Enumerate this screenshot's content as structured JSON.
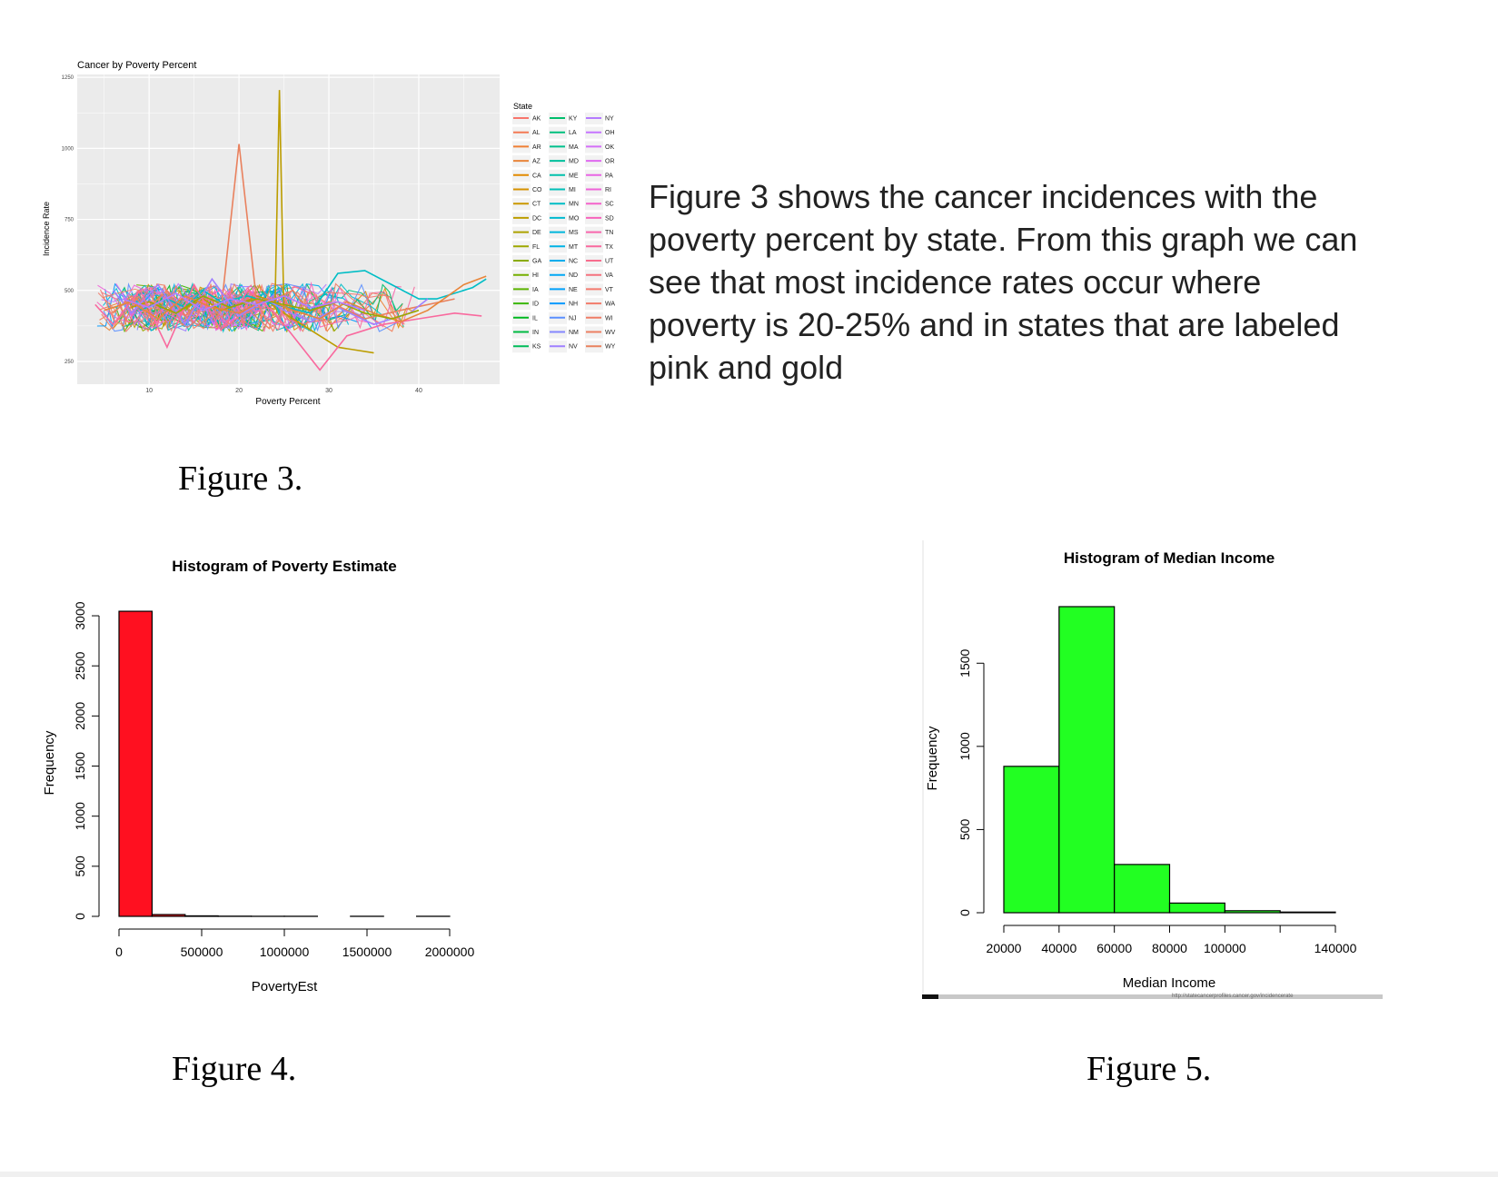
{
  "captions": {
    "fig3": "Figure 3.",
    "fig4": "Figure 4.",
    "fig5": "Figure 5."
  },
  "description": "Figure 3 shows the cancer incidences with the poverty percent by state. From this graph we can see that most incidence rates occur where poverty is 20-25% and in states that are labeled pink and gold",
  "chart_data": [
    {
      "id": "fig3",
      "type": "line",
      "title": "Cancer by Poverty Percent",
      "xlabel": "Poverty Percent",
      "ylabel": "Incidence Rate",
      "xlim": [
        2,
        49
      ],
      "ylim": [
        170,
        1260
      ],
      "xticks": [
        10,
        20,
        30,
        40
      ],
      "yticks": [
        250,
        500,
        750,
        1000,
        1250
      ],
      "grid": true,
      "legend": {
        "title": "State",
        "placement": "right",
        "entries": [
          "AK",
          "AL",
          "AR",
          "AZ",
          "CA",
          "CO",
          "CT",
          "DC",
          "DE",
          "FL",
          "GA",
          "HI",
          "IA",
          "ID",
          "IL",
          "IN",
          "KS",
          "KY",
          "LA",
          "MA",
          "MD",
          "ME",
          "MI",
          "MN",
          "MO",
          "MS",
          "MT",
          "NC",
          "ND",
          "NE",
          "NH",
          "NJ",
          "NM",
          "NV",
          "NY",
          "OH",
          "OK",
          "OR",
          "PA",
          "RI",
          "SC",
          "SD",
          "TN",
          "TX",
          "UT",
          "VA",
          "VT",
          "WA",
          "WI",
          "WV",
          "WY"
        ],
        "colors": [
          "#F8766D",
          "#F47A54",
          "#EF7F34",
          "#E8853A",
          "#E18A00",
          "#D69100",
          "#C99800",
          "#BC9D00",
          "#ADA200",
          "#9DA700",
          "#8AAB00",
          "#74AE00",
          "#5BB300",
          "#39B600",
          "#00B81F",
          "#00BA42",
          "#00BC59",
          "#00BE6C",
          "#00BF7D",
          "#00C08D",
          "#00C09C",
          "#00C0AB",
          "#00BFB8",
          "#00BDC5",
          "#00BAD0",
          "#00B6DB",
          "#00B2E5",
          "#00ADED",
          "#00A7F4",
          "#00A0FA",
          "#0099FE",
          "#5B90FF",
          "#8487FF",
          "#9F80FF",
          "#B57BFF",
          "#C675FF",
          "#D46FF8",
          "#DF69EF",
          "#E865E4",
          "#EF63D8",
          "#F463CB",
          "#F764BC",
          "#F966AD",
          "#F9699E",
          "#F76D8E",
          "#F4717E",
          "#F47A6E",
          "#F27B6A",
          "#EF7D66",
          "#EC7F62",
          "#E9815E"
        ]
      },
      "series": [
        {
          "name": "WY",
          "x": [
            6,
            8,
            10,
            12,
            14,
            16,
            18,
            20,
            22,
            24,
            26,
            28,
            30,
            34,
            38,
            44
          ],
          "y": [
            420,
            480,
            440,
            500,
            410,
            470,
            430,
            1015,
            450,
            470,
            500,
            420,
            460,
            400,
            430,
            470
          ]
        },
        {
          "name": "DC",
          "x": [
            8,
            10,
            13,
            16,
            18,
            20,
            22,
            23,
            24,
            24.5,
            25,
            27,
            29,
            31,
            35
          ],
          "y": [
            440,
            460,
            420,
            470,
            430,
            450,
            480,
            470,
            440,
            1205,
            420,
            380,
            340,
            300,
            280
          ]
        },
        {
          "name": "MN",
          "x": [
            9,
            12,
            14,
            16,
            18,
            21,
            24,
            28,
            31,
            34,
            37,
            40,
            42,
            46,
            47.5
          ],
          "y": [
            430,
            470,
            440,
            500,
            460,
            480,
            450,
            420,
            560,
            570,
            520,
            470,
            470,
            510,
            540
          ]
        },
        {
          "name": "NV",
          "x": [
            6,
            8,
            11,
            14,
            17,
            20,
            23,
            25,
            28,
            31,
            35,
            39,
            41
          ],
          "y": [
            500,
            420,
            520,
            380,
            540,
            410,
            470,
            430,
            390,
            440,
            380,
            420,
            470
          ]
        },
        {
          "name": "TX",
          "x": [
            4,
            6,
            9,
            12,
            15,
            18,
            21,
            24,
            27,
            29,
            32,
            36,
            40,
            44,
            47
          ],
          "y": [
            450,
            380,
            500,
            300,
            520,
            360,
            500,
            420,
            300,
            220,
            340,
            380,
            400,
            420,
            410
          ]
        },
        {
          "name": "AZ",
          "x": [
            5,
            8,
            11,
            14,
            17,
            20,
            23,
            26,
            29,
            32,
            35,
            38,
            41,
            45,
            47.5
          ],
          "y": [
            430,
            460,
            400,
            480,
            440,
            420,
            470,
            430,
            400,
            460,
            420,
            390,
            430,
            520,
            550
          ]
        },
        {
          "name": "FL",
          "x": [
            10,
            13,
            16,
            19,
            22,
            25,
            28,
            31,
            34,
            37,
            40
          ],
          "y": [
            460,
            420,
            480,
            440,
            470,
            450,
            430,
            460,
            420,
            400,
            430
          ]
        },
        {
          "name": "NY",
          "x": [
            7,
            10,
            13,
            16,
            19,
            22,
            25,
            28,
            31,
            34
          ],
          "y": [
            470,
            440,
            490,
            430,
            470,
            450,
            480,
            440,
            460,
            430
          ]
        }
      ]
    },
    {
      "id": "fig4",
      "type": "bar",
      "title": "Histogram of Poverty Estimate",
      "xlabel": "PovertyEst",
      "ylabel": "Frequency",
      "bin_edges": [
        0,
        200000,
        400000,
        600000,
        800000,
        1000000,
        1200000,
        1400000,
        1600000,
        1800000,
        2000000
      ],
      "values": [
        3045,
        18,
        5,
        2,
        1,
        1,
        0,
        1,
        0,
        1
      ],
      "xticks": [
        0,
        500000,
        1000000,
        1500000,
        2000000
      ],
      "yticks": [
        0,
        500,
        1000,
        1500,
        2000,
        2500,
        3000
      ],
      "ylim": [
        0,
        3100
      ],
      "color": "#FF1020"
    },
    {
      "id": "fig5",
      "type": "bar",
      "title": "Histogram of Median Income",
      "xlabel": "Median Income",
      "ylabel": "Frequency",
      "bin_edges": [
        20000,
        40000,
        60000,
        80000,
        100000,
        120000,
        140000
      ],
      "values": [
        880,
        1840,
        290,
        58,
        12,
        4
      ],
      "xticks": [
        20000,
        40000,
        60000,
        80000,
        100000,
        140000
      ],
      "yticks": [
        0,
        500,
        1000,
        1500
      ],
      "ylim": [
        0,
        1900
      ],
      "color": "#22FF22",
      "footnote": "http://statecancerprofiles.cancer.gov/incidencerate"
    }
  ]
}
